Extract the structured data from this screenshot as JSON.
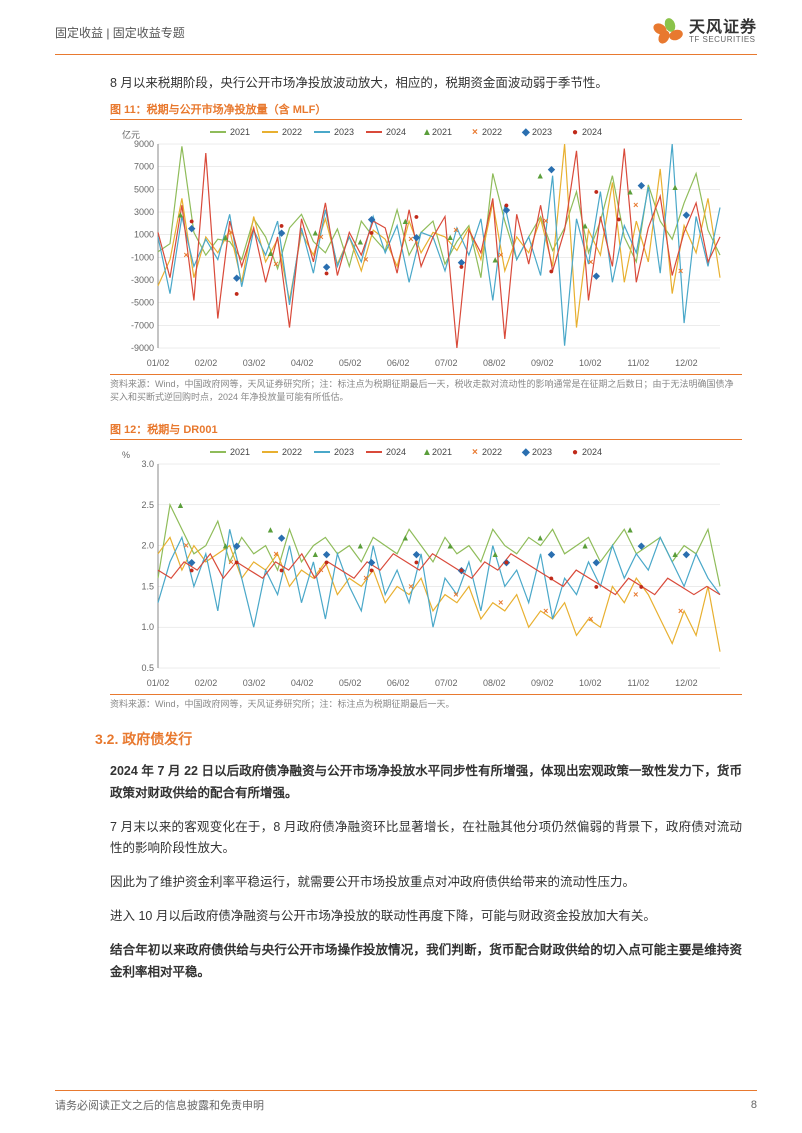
{
  "header": {
    "breadcrumb": "固定收益 | 固定收益专题",
    "logo_cn": "天风证券",
    "logo_en": "TF SECURITIES"
  },
  "intro": "8 月以来税期阶段，央行公开市场净投放波动放大，相应的，税期资金面波动弱于季节性。",
  "chart11": {
    "title": "图 11：税期与公开市场净投放量（含 MLF）",
    "source": "资料来源：Wind，中国政府网等，天风证券研究所；注：标注点为税期征期最后一天，税收走款对流动性的影响通常是在征期之后数日；由于无法明确国债净买入和买断式逆回购时点，2024 年净投放量可能有所低估。",
    "ylabel": "亿元",
    "y_ticks": [
      "-9000",
      "-7000",
      "-5000",
      "-3000",
      "-1000",
      "1000",
      "3000",
      "5000",
      "7000",
      "9000"
    ],
    "x_ticks": [
      "01/02",
      "02/02",
      "03/02",
      "04/02",
      "05/02",
      "06/02",
      "07/02",
      "08/02",
      "09/02",
      "10/02",
      "11/02",
      "12/02"
    ],
    "legend_lines": [
      {
        "label": "2021",
        "color": "#8fbc5a"
      },
      {
        "label": "2022",
        "color": "#e8b030"
      },
      {
        "label": "2023",
        "color": "#4aa8c9"
      },
      {
        "label": "2024",
        "color": "#d94a3a"
      }
    ],
    "legend_marks": [
      {
        "label": "2021",
        "glyph": "▲",
        "color": "#5a9e3a"
      },
      {
        "label": "2022",
        "glyph": "×",
        "color": "#e8792f"
      },
      {
        "label": "2023",
        "glyph": "◆",
        "color": "#2a6fb0"
      },
      {
        "label": "2024",
        "glyph": "●",
        "color": "#c02a1a"
      }
    ],
    "ylim": [
      -9000,
      9000
    ],
    "colors": {
      "grid": "#d8d8d8",
      "axis": "#888",
      "bg": "#ffffff"
    },
    "series": {
      "2021": [
        -500,
        200,
        8800,
        1200,
        -800,
        600,
        400,
        -1200,
        2400,
        800,
        -2000,
        1600,
        2800,
        400,
        -600,
        1500,
        -1800,
        2200,
        800,
        -400,
        3200,
        -800,
        1200,
        2200,
        -1600,
        400,
        1800,
        -2800,
        6400,
        2200,
        -1200,
        800,
        2600,
        -400,
        1600,
        4800,
        -600,
        2200,
        6200,
        800,
        -1400,
        5400,
        2200,
        600,
        3800,
        6400,
        1400,
        -800
      ],
      "2022": [
        -3500,
        -1200,
        4200,
        -2800,
        800,
        -600,
        1400,
        -3200,
        2600,
        -1400,
        600,
        -4800,
        1200,
        -800,
        2400,
        -1600,
        800,
        -2200,
        1400,
        600,
        -1800,
        2200,
        -600,
        1200,
        800,
        -400,
        1600,
        -1200,
        3800,
        -2200,
        800,
        -600,
        2400,
        -1800,
        9000,
        -7200,
        1400,
        -800,
        5600,
        -3200,
        2200,
        -1400,
        6800,
        -4200,
        1800,
        -600,
        4200,
        -2800
      ],
      "2023": [
        800,
        -4200,
        2600,
        -1800,
        600,
        -1200,
        2800,
        -3600,
        1400,
        -800,
        2200,
        -5200,
        1600,
        -2400,
        3200,
        -1800,
        800,
        -1400,
        2600,
        -600,
        1800,
        -3200,
        1200,
        800,
        -2200,
        1600,
        -800,
        2400,
        -4800,
        3600,
        -1200,
        800,
        -2600,
        6200,
        -8800,
        2400,
        -1600,
        4800,
        -3200,
        1800,
        -600,
        5200,
        -2400,
        9000,
        -6800,
        2600,
        -1800,
        3400
      ],
      "2024": [
        1200,
        -2800,
        3600,
        -4800,
        8200,
        -6400,
        2200,
        -1800,
        1600,
        -3200,
        800,
        -7200,
        2400,
        -1400,
        3800,
        -2600,
        1200,
        -800,
        2200,
        1600,
        -2400,
        3200,
        -1800,
        800,
        2600,
        -9000,
        1400,
        -600,
        4200,
        -8200,
        2800,
        -1600,
        3600,
        -2200,
        1400,
        8400,
        -4800,
        2600,
        -1800,
        8600,
        -3200,
        1600,
        4400,
        -2600,
        1200,
        3800,
        -1400,
        800
      ]
    },
    "markers": {
      "2021": [
        [
          0.04,
          2800
        ],
        [
          0.12,
          800
        ],
        [
          0.2,
          -600
        ],
        [
          0.28,
          1200
        ],
        [
          0.36,
          400
        ],
        [
          0.44,
          2200
        ],
        [
          0.52,
          800
        ],
        [
          0.6,
          -1200
        ],
        [
          0.68,
          6200
        ],
        [
          0.76,
          1800
        ],
        [
          0.84,
          4800
        ],
        [
          0.92,
          5200
        ]
      ],
      "2022": [
        [
          0.05,
          -800
        ],
        [
          0.13,
          1200
        ],
        [
          0.21,
          -1600
        ],
        [
          0.29,
          800
        ],
        [
          0.37,
          -1200
        ],
        [
          0.45,
          600
        ],
        [
          0.53,
          1400
        ],
        [
          0.61,
          -800
        ],
        [
          0.69,
          2200
        ],
        [
          0.77,
          -1400
        ],
        [
          0.85,
          3600
        ],
        [
          0.93,
          -2200
        ]
      ],
      "2023": [
        [
          0.06,
          1600
        ],
        [
          0.14,
          -2800
        ],
        [
          0.22,
          1200
        ],
        [
          0.3,
          -1800
        ],
        [
          0.38,
          2400
        ],
        [
          0.46,
          800
        ],
        [
          0.54,
          -1400
        ],
        [
          0.62,
          3200
        ],
        [
          0.7,
          6800
        ],
        [
          0.78,
          -2600
        ],
        [
          0.86,
          5400
        ],
        [
          0.94,
          2800
        ]
      ],
      "2024": [
        [
          0.06,
          2200
        ],
        [
          0.14,
          -4200
        ],
        [
          0.22,
          1800
        ],
        [
          0.3,
          -2400
        ],
        [
          0.38,
          1200
        ],
        [
          0.46,
          2600
        ],
        [
          0.54,
          -1800
        ],
        [
          0.62,
          3600
        ],
        [
          0.7,
          -2200
        ],
        [
          0.78,
          4800
        ],
        [
          0.82,
          2400
        ]
      ]
    }
  },
  "chart12": {
    "title": "图 12：税期与 DR001",
    "source": "资料来源：Wind，中国政府网等，天风证券研究所；注：标注点为税期征期最后一天。",
    "ylabel": "%",
    "y_ticks": [
      "0.5",
      "1.0",
      "1.5",
      "2.0",
      "2.5",
      "3.0"
    ],
    "x_ticks": [
      "01/02",
      "02/02",
      "03/02",
      "04/02",
      "05/02",
      "06/02",
      "07/02",
      "08/02",
      "09/02",
      "10/02",
      "11/02",
      "12/02"
    ],
    "legend_lines": [
      {
        "label": "2021",
        "color": "#8fbc5a"
      },
      {
        "label": "2022",
        "color": "#e8b030"
      },
      {
        "label": "2023",
        "color": "#4aa8c9"
      },
      {
        "label": "2024",
        "color": "#d94a3a"
      }
    ],
    "legend_marks": [
      {
        "label": "2021",
        "glyph": "▲",
        "color": "#5a9e3a"
      },
      {
        "label": "2022",
        "glyph": "×",
        "color": "#e8792f"
      },
      {
        "label": "2023",
        "glyph": "◆",
        "color": "#2a6fb0"
      },
      {
        "label": "2024",
        "glyph": "●",
        "color": "#c02a1a"
      }
    ],
    "ylim": [
      0.5,
      3.0
    ],
    "colors": {
      "grid": "#d8d8d8",
      "axis": "#888",
      "bg": "#ffffff"
    },
    "series": {
      "2021": [
        1.6,
        2.5,
        2.2,
        1.9,
        2.0,
        2.3,
        1.8,
        2.1,
        1.9,
        2.0,
        1.7,
        2.2,
        1.8,
        2.0,
        2.1,
        1.9,
        2.0,
        1.8,
        2.1,
        2.0,
        1.9,
        2.2,
        2.0,
        1.8,
        2.1,
        1.9,
        2.0,
        1.8,
        2.2,
        2.0,
        1.9,
        2.1,
        2.0,
        2.2,
        1.9,
        2.0,
        2.1,
        1.8,
        2.0,
        2.2,
        1.9,
        2.0,
        2.1,
        1.8,
        2.0,
        1.9,
        2.2,
        1.5
      ],
      "2022": [
        1.9,
        2.1,
        1.7,
        2.0,
        1.8,
        1.9,
        2.0,
        1.6,
        1.8,
        1.7,
        1.9,
        1.5,
        1.7,
        1.6,
        1.8,
        1.4,
        1.6,
        1.5,
        1.7,
        1.3,
        1.5,
        1.4,
        1.6,
        1.2,
        1.4,
        1.3,
        1.5,
        1.1,
        1.3,
        1.2,
        1.4,
        1.0,
        1.2,
        1.1,
        1.3,
        0.9,
        1.1,
        1.0,
        1.5,
        1.3,
        1.6,
        1.4,
        1.1,
        0.8,
        1.2,
        0.9,
        1.5,
        0.7
      ],
      "2023": [
        1.3,
        1.8,
        2.1,
        1.5,
        1.9,
        1.2,
        2.2,
        1.6,
        1.0,
        1.7,
        1.4,
        2.0,
        1.3,
        1.8,
        1.1,
        1.9,
        1.5,
        1.2,
        2.0,
        1.4,
        1.7,
        1.3,
        1.9,
        1.0,
        1.6,
        1.4,
        1.8,
        1.2,
        2.0,
        1.5,
        1.7,
        1.3,
        1.9,
        1.1,
        1.6,
        1.4,
        1.8,
        1.5,
        2.0,
        1.6,
        1.9,
        1.7,
        2.1,
        1.8,
        1.5,
        1.9,
        1.6,
        1.4
      ],
      "2024": [
        1.7,
        1.6,
        1.8,
        1.7,
        1.9,
        1.6,
        1.8,
        1.7,
        1.6,
        1.8,
        1.7,
        1.9,
        1.6,
        1.8,
        1.7,
        1.6,
        1.8,
        1.7,
        1.9,
        1.8,
        1.7,
        1.9,
        1.8,
        1.7,
        1.6,
        1.8,
        1.7,
        1.9,
        1.8,
        1.7,
        1.6,
        1.5,
        1.7,
        1.6,
        1.5,
        1.4,
        1.6,
        1.5,
        1.4,
        1.6,
        1.5,
        1.4,
        1.5,
        1.4
      ]
    },
    "markers": {
      "2021": [
        [
          0.04,
          2.5
        ],
        [
          0.12,
          2.0
        ],
        [
          0.2,
          2.2
        ],
        [
          0.28,
          1.9
        ],
        [
          0.36,
          2.0
        ],
        [
          0.44,
          2.1
        ],
        [
          0.52,
          2.0
        ],
        [
          0.6,
          1.9
        ],
        [
          0.68,
          2.1
        ],
        [
          0.76,
          2.0
        ],
        [
          0.84,
          2.2
        ],
        [
          0.92,
          1.9
        ]
      ],
      "2022": [
        [
          0.05,
          2.0
        ],
        [
          0.13,
          1.8
        ],
        [
          0.21,
          1.9
        ],
        [
          0.29,
          1.7
        ],
        [
          0.37,
          1.6
        ],
        [
          0.45,
          1.5
        ],
        [
          0.53,
          1.4
        ],
        [
          0.61,
          1.3
        ],
        [
          0.69,
          1.2
        ],
        [
          0.77,
          1.1
        ],
        [
          0.85,
          1.4
        ],
        [
          0.93,
          1.2
        ]
      ],
      "2023": [
        [
          0.06,
          1.8
        ],
        [
          0.14,
          2.0
        ],
        [
          0.22,
          2.1
        ],
        [
          0.3,
          1.9
        ],
        [
          0.38,
          1.8
        ],
        [
          0.46,
          1.9
        ],
        [
          0.54,
          1.7
        ],
        [
          0.62,
          1.8
        ],
        [
          0.7,
          1.9
        ],
        [
          0.78,
          1.8
        ],
        [
          0.86,
          2.0
        ],
        [
          0.94,
          1.9
        ]
      ],
      "2024": [
        [
          0.06,
          1.7
        ],
        [
          0.14,
          1.8
        ],
        [
          0.22,
          1.7
        ],
        [
          0.3,
          1.8
        ],
        [
          0.38,
          1.7
        ],
        [
          0.46,
          1.8
        ],
        [
          0.54,
          1.7
        ],
        [
          0.62,
          1.8
        ],
        [
          0.7,
          1.6
        ],
        [
          0.78,
          1.5
        ],
        [
          0.86,
          1.5
        ]
      ]
    }
  },
  "section_h": "3.2. 政府债发行",
  "para1": "2024 年 7 月 22 日以后政府债净融资与公开市场净投放水平同步性有所增强，体现出宏观政策一致性发力下，货币政策对财政供给的配合有所增强。",
  "para2": "7 月末以来的客观变化在于，8 月政府债净融资环比显著增长，在社融其他分项仍然偏弱的背景下，政府债对流动性的影响阶段性放大。",
  "para3": "因此为了维护资金利率平稳运行，就需要公开市场投放重点对冲政府债供给带来的流动性压力。",
  "para4": "进入 10 月以后政府债净融资与公开市场净投放的联动性再度下降，可能与财政资金投放加大有关。",
  "para5": "结合年初以来政府债供给与央行公开市场操作投放情况，我们判断，货币配合财政供给的切入点可能主要是维持资金利率相对平稳。",
  "footer": {
    "disclaimer": "请务必阅读正文之后的信息披露和免责申明",
    "page": "8"
  }
}
